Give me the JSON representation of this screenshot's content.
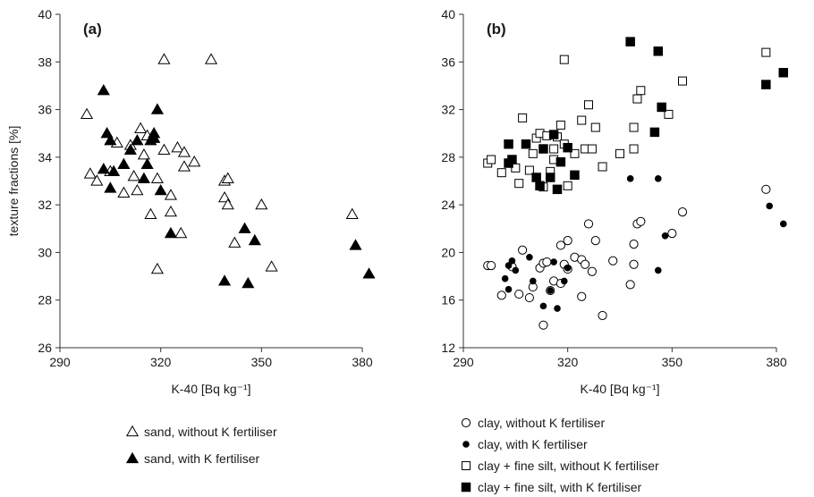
{
  "chart_data": [
    {
      "panel_label": "(a)",
      "type": "scatter",
      "xlabel": "K-40 [Bq kg⁻¹]",
      "ylabel": "texture fractions [%]",
      "xlim": [
        290,
        380
      ],
      "ylim": [
        26,
        40
      ],
      "xticks": [
        290,
        320,
        350,
        380
      ],
      "yticks": [
        26,
        28,
        30,
        32,
        34,
        36,
        38,
        40
      ],
      "grid": false,
      "legend_position": "below",
      "series": [
        {
          "name": "sand, without K fertiliser",
          "marker": "open-triangle",
          "points": [
            [
              298,
              35.8
            ],
            [
              299,
              33.3
            ],
            [
              301,
              33.0
            ],
            [
              305,
              33.4
            ],
            [
              307,
              34.6
            ],
            [
              309,
              32.5
            ],
            [
              311,
              34.5
            ],
            [
              312,
              33.2
            ],
            [
              313,
              32.6
            ],
            [
              314,
              35.2
            ],
            [
              315,
              34.1
            ],
            [
              316,
              34.9
            ],
            [
              317,
              31.6
            ],
            [
              318,
              34.8
            ],
            [
              319,
              33.1
            ],
            [
              319,
              29.3
            ],
            [
              321,
              38.1
            ],
            [
              321,
              34.3
            ],
            [
              323,
              32.4
            ],
            [
              323,
              31.7
            ],
            [
              325,
              34.4
            ],
            [
              326,
              30.8
            ],
            [
              327,
              33.6
            ],
            [
              327,
              34.2
            ],
            [
              330,
              33.8
            ],
            [
              335,
              38.1
            ],
            [
              339,
              33.0
            ],
            [
              339,
              32.3
            ],
            [
              340,
              33.1
            ],
            [
              340,
              32.0
            ],
            [
              342,
              30.4
            ],
            [
              350,
              32.0
            ],
            [
              353,
              29.4
            ],
            [
              377,
              31.6
            ]
          ]
        },
        {
          "name": "sand, with K fertiliser",
          "marker": "filled-triangle",
          "points": [
            [
              303,
              36.8
            ],
            [
              303,
              33.5
            ],
            [
              304,
              35.0
            ],
            [
              305,
              34.7
            ],
            [
              305,
              32.7
            ],
            [
              306,
              33.4
            ],
            [
              309,
              33.7
            ],
            [
              311,
              34.3
            ],
            [
              313,
              34.7
            ],
            [
              315,
              33.1
            ],
            [
              316,
              33.7
            ],
            [
              317,
              34.7
            ],
            [
              318,
              35.0
            ],
            [
              318,
              34.8
            ],
            [
              319,
              36.0
            ],
            [
              320,
              32.6
            ],
            [
              323,
              30.8
            ],
            [
              339,
              28.8
            ],
            [
              345,
              31.0
            ],
            [
              346,
              28.7
            ],
            [
              348,
              30.5
            ],
            [
              378,
              30.3
            ],
            [
              382,
              29.1
            ]
          ]
        }
      ]
    },
    {
      "panel_label": "(b)",
      "type": "scatter",
      "xlabel": "K-40 [Bq kg⁻¹]",
      "ylabel": "",
      "xlim": [
        290,
        380
      ],
      "ylim": [
        12,
        40
      ],
      "xticks": [
        290,
        320,
        350,
        380
      ],
      "yticks": [
        12,
        16,
        20,
        24,
        28,
        32,
        36,
        40
      ],
      "grid": false,
      "legend_position": "below",
      "series": [
        {
          "name": "clay, without K fertiliser",
          "marker": "open-circle",
          "points": [
            [
              297,
              18.9
            ],
            [
              298,
              18.9
            ],
            [
              301,
              16.4
            ],
            [
              304,
              18.8
            ],
            [
              306,
              16.5
            ],
            [
              307,
              20.2
            ],
            [
              309,
              16.2
            ],
            [
              310,
              17.1
            ],
            [
              312,
              18.7
            ],
            [
              313,
              19.1
            ],
            [
              313,
              13.9
            ],
            [
              314,
              19.2
            ],
            [
              315,
              16.8
            ],
            [
              316,
              17.6
            ],
            [
              318,
              20.6
            ],
            [
              318,
              17.4
            ],
            [
              319,
              19.0
            ],
            [
              320,
              21.0
            ],
            [
              320,
              18.6
            ],
            [
              322,
              19.6
            ],
            [
              324,
              19.4
            ],
            [
              324,
              16.3
            ],
            [
              325,
              19.0
            ],
            [
              326,
              22.4
            ],
            [
              327,
              18.4
            ],
            [
              328,
              21.0
            ],
            [
              330,
              14.7
            ],
            [
              333,
              19.3
            ],
            [
              338,
              17.3
            ],
            [
              339,
              20.7
            ],
            [
              339,
              19.0
            ],
            [
              340,
              22.4
            ],
            [
              341,
              22.6
            ],
            [
              350,
              21.6
            ],
            [
              353,
              23.4
            ],
            [
              377,
              25.3
            ]
          ]
        },
        {
          "name": "clay, with K fertiliser",
          "marker": "filled-circle",
          "points": [
            [
              302,
              17.8
            ],
            [
              303,
              18.9
            ],
            [
              303,
              16.9
            ],
            [
              304,
              19.3
            ],
            [
              305,
              18.5
            ],
            [
              309,
              19.6
            ],
            [
              310,
              17.6
            ],
            [
              313,
              15.5
            ],
            [
              315,
              16.8
            ],
            [
              316,
              19.2
            ],
            [
              317,
              15.3
            ],
            [
              319,
              17.6
            ],
            [
              320,
              18.7
            ],
            [
              338,
              26.2
            ],
            [
              346,
              26.2
            ],
            [
              346,
              18.5
            ],
            [
              348,
              21.4
            ],
            [
              378,
              23.9
            ],
            [
              382,
              22.4
            ]
          ]
        },
        {
          "name": "clay + fine silt, without K fertiliser",
          "marker": "open-square",
          "points": [
            [
              297,
              27.5
            ],
            [
              298,
              27.8
            ],
            [
              301,
              26.7
            ],
            [
              305,
              27.1
            ],
            [
              306,
              25.8
            ],
            [
              307,
              31.3
            ],
            [
              309,
              26.9
            ],
            [
              310,
              28.3
            ],
            [
              311,
              29.6
            ],
            [
              312,
              30.0
            ],
            [
              313,
              25.5
            ],
            [
              314,
              29.8
            ],
            [
              315,
              26.8
            ],
            [
              316,
              27.8
            ],
            [
              316,
              28.7
            ],
            [
              317,
              29.7
            ],
            [
              318,
              30.7
            ],
            [
              319,
              36.2
            ],
            [
              319,
              29.1
            ],
            [
              320,
              25.6
            ],
            [
              322,
              28.3
            ],
            [
              324,
              31.1
            ],
            [
              325,
              28.7
            ],
            [
              326,
              32.4
            ],
            [
              327,
              28.7
            ],
            [
              328,
              30.5
            ],
            [
              330,
              27.2
            ],
            [
              335,
              28.3
            ],
            [
              339,
              28.7
            ],
            [
              339,
              30.5
            ],
            [
              340,
              32.9
            ],
            [
              341,
              33.6
            ],
            [
              349,
              31.6
            ],
            [
              353,
              34.4
            ],
            [
              377,
              36.8
            ]
          ]
        },
        {
          "name": "clay + fine silt, with K fertiliser",
          "marker": "filled-square",
          "points": [
            [
              303,
              29.1
            ],
            [
              303,
              27.5
            ],
            [
              304,
              27.8
            ],
            [
              308,
              29.1
            ],
            [
              311,
              26.3
            ],
            [
              312,
              25.6
            ],
            [
              313,
              28.7
            ],
            [
              315,
              26.3
            ],
            [
              316,
              29.9
            ],
            [
              317,
              25.3
            ],
            [
              318,
              27.6
            ],
            [
              320,
              28.8
            ],
            [
              322,
              26.5
            ],
            [
              338,
              37.7
            ],
            [
              345,
              30.1
            ],
            [
              346,
              36.9
            ],
            [
              347,
              32.2
            ],
            [
              377,
              34.1
            ],
            [
              382,
              35.1
            ]
          ]
        }
      ]
    }
  ]
}
